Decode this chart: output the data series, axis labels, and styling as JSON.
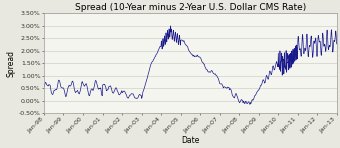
{
  "title": "Spread (10-Year minus 2-Year U.S. Dollar CMS Rate)",
  "xlabel": "Date",
  "ylabel": "Spread",
  "ylim": [
    -0.005,
    0.035
  ],
  "yticks": [
    -0.005,
    0.0,
    0.005,
    0.01,
    0.015,
    0.02,
    0.025,
    0.03,
    0.035
  ],
  "ytick_labels": [
    "-0.50%",
    "0.00%",
    "0.50%",
    "1.00%",
    "1.50%",
    "2.00%",
    "2.50%",
    "3.00%",
    "3.50%"
  ],
  "xtick_labels": [
    "Jan-98",
    "Jan-99",
    "Jan-00",
    "Jan-01",
    "Jan-02",
    "Jan-03",
    "Jan-04",
    "Jan-05",
    "Jan-06",
    "Jan-07",
    "Jan-08",
    "Jan-09",
    "Jan-10",
    "Jan-11",
    "Jan-12",
    "Jan-13"
  ],
  "line_color": "#1a1a8c",
  "bg_color": "#e8e8e0",
  "plot_bg": "#f5f5ef",
  "title_fontsize": 6.5,
  "label_fontsize": 5.5,
  "tick_fontsize": 4.5,
  "grid_color": "#c8c8c0"
}
